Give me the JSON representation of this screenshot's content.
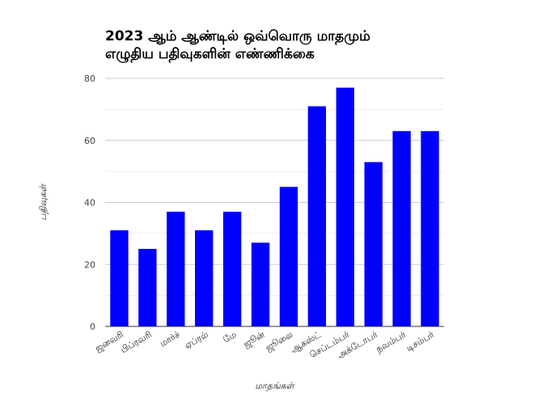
{
  "chart_data": {
    "type": "bar",
    "title_lines": [
      "2023 ஆம் ஆண்டில் ஒவ்வொரு மாதமும்",
      "எழுதிய பதிவுகளின் எண்ணிக்கை"
    ],
    "xlabel": "மாதங்கள்",
    "ylabel": "பதிவுகள்",
    "categories": [
      "ஜனவரி",
      "பிப்ரவரி",
      "மார்ச்",
      "ஏப்ரல்",
      "மே",
      "ஜூன்",
      "ஜூலை",
      "ஆகஸ்ட்",
      "செப்டம்பர்",
      "அக்டோபர்",
      "நவம்பர்",
      "டிசம்பர்"
    ],
    "values": [
      31,
      25,
      37,
      31,
      37,
      27,
      45,
      71,
      77,
      53,
      63,
      63
    ],
    "ylim": [
      0,
      80
    ],
    "yticks": [
      0,
      20,
      40,
      60,
      80
    ],
    "bar_color": "#0000ff",
    "major_grid_color": "#cccccc",
    "minor_grid_color": "#ebebeb",
    "grid": true,
    "legend": "none"
  }
}
